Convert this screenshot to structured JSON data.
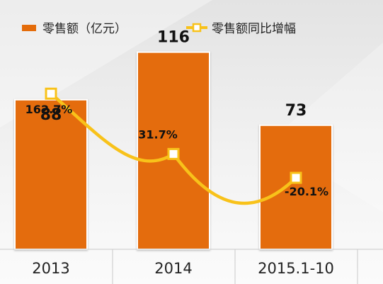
{
  "chart_data": {
    "type": "bar",
    "categories": [
      "2013",
      "2014",
      "2015.1-10"
    ],
    "series": [
      {
        "name": "零售额（亿元）",
        "type": "bar",
        "values": [
          88,
          116,
          73
        ],
        "labels": [
          "88",
          "116",
          "73"
        ],
        "color": "#E46C0A"
      },
      {
        "name": "零售额同比增幅",
        "type": "line",
        "values": [
          162.7,
          31.7,
          -20.1
        ],
        "labels": [
          "162.7%",
          "31.7%",
          "-20.1%"
        ],
        "color": "#F8C21A"
      }
    ],
    "legend_position": "top",
    "grid": false
  },
  "colors": {
    "bar_fill": "#E46C0A",
    "line": "#F8C21A",
    "marker_fill": "#ffffff"
  }
}
